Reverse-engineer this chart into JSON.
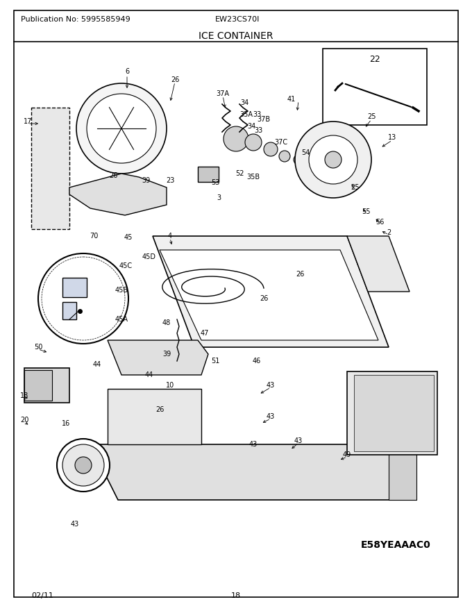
{
  "publication_no": "Publication No: 5995585949",
  "model": "EW23CS70I",
  "title": "ICE CONTAINER",
  "diagram_code": "E58YEAAAC0",
  "date": "02/11",
  "page": "18",
  "bg_color": "#ffffff",
  "border_color": "#000000",
  "text_color": "#000000",
  "fig_width": 6.8,
  "fig_height": 8.8,
  "dpi": 100
}
